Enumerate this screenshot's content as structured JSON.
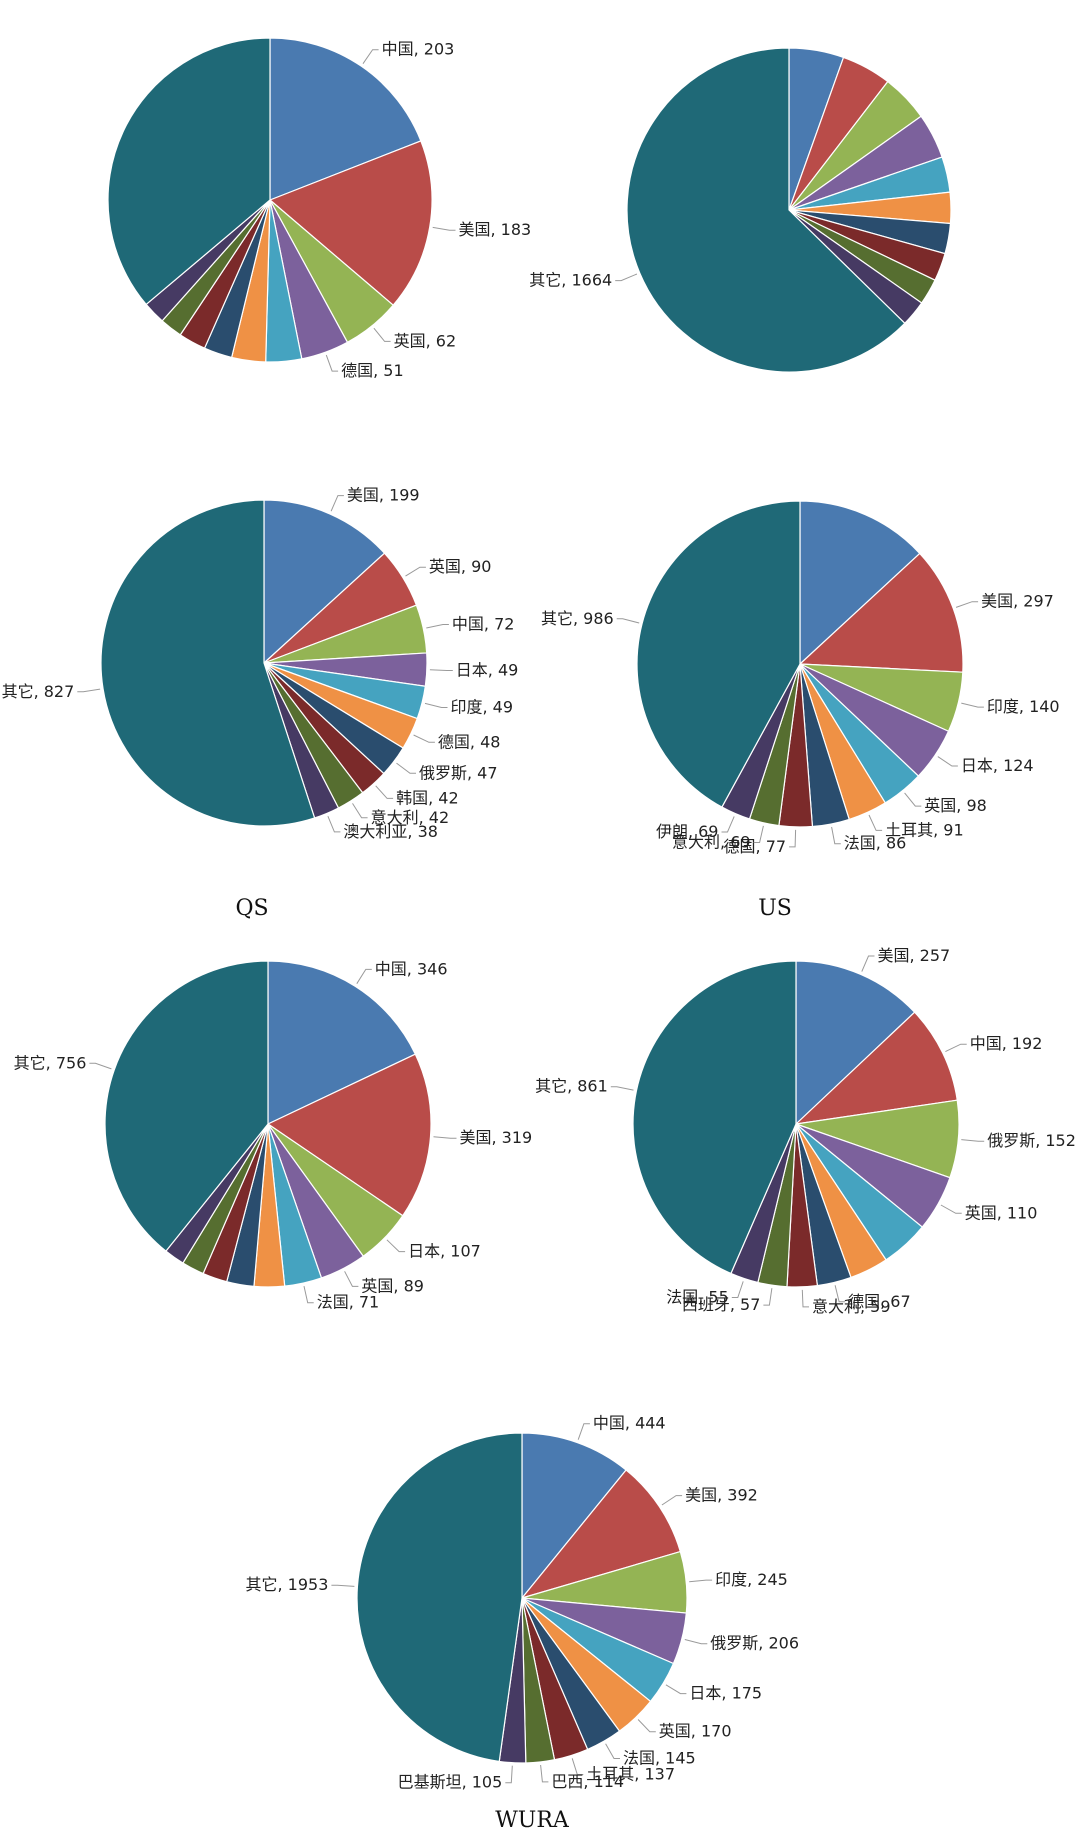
{
  "colors": [
    "#4a7ab0",
    "#b94c49",
    "#94b454",
    "#7c619c",
    "#45a3c0",
    "#ef9145",
    "#2a4d6e",
    "#7b2a2a",
    "#566e30",
    "#463a63",
    "#1f6977"
  ],
  "chart_data": [
    {
      "type": "pie",
      "title": "",
      "slices": [
        {
          "label": "中国",
          "value": 203
        },
        {
          "label": "美国",
          "value": 183
        },
        {
          "label": "英国",
          "value": 62
        },
        {
          "label": "德国",
          "value": 51
        },
        {
          "label": "",
          "value": 38
        },
        {
          "label": "",
          "value": 36
        },
        {
          "label": "",
          "value": 30
        },
        {
          "label": "",
          "value": 29
        },
        {
          "label": "",
          "value": 24
        },
        {
          "label": "",
          "value": 24
        },
        {
          "label": "",
          "value": 385
        }
      ]
    },
    {
      "type": "pie",
      "title": "",
      "slices": [
        {
          "label": "",
          "value": 145
        },
        {
          "label": "",
          "value": 132
        },
        {
          "label": "",
          "value": 126
        },
        {
          "label": "",
          "value": 120
        },
        {
          "label": "",
          "value": 94
        },
        {
          "label": "",
          "value": 82
        },
        {
          "label": "",
          "value": 80
        },
        {
          "label": "",
          "value": 74
        },
        {
          "label": "",
          "value": 69
        },
        {
          "label": "",
          "value": 69
        },
        {
          "label": "其它",
          "value": 1664
        }
      ]
    },
    {
      "type": "pie",
      "title": "QS",
      "slices": [
        {
          "label": "美国",
          "value": 199
        },
        {
          "label": "英国",
          "value": 90
        },
        {
          "label": "中国",
          "value": 72
        },
        {
          "label": "日本",
          "value": 49
        },
        {
          "label": "印度",
          "value": 49
        },
        {
          "label": "德国",
          "value": 48
        },
        {
          "label": "俄罗斯",
          "value": 47
        },
        {
          "label": "韩国",
          "value": 42
        },
        {
          "label": "意大利",
          "value": 42
        },
        {
          "label": "澳大利亚",
          "value": 38
        },
        {
          "label": "其它",
          "value": 827
        }
      ]
    },
    {
      "type": "pie",
      "title": "US",
      "slices": [
        {
          "label": "",
          "value": 308
        },
        {
          "label": "美国",
          "value": 297
        },
        {
          "label": "印度",
          "value": 140
        },
        {
          "label": "日本",
          "value": 124
        },
        {
          "label": "英国",
          "value": 98
        },
        {
          "label": "土耳其",
          "value": 91
        },
        {
          "label": "法国",
          "value": 86
        },
        {
          "label": "德国",
          "value": 77
        },
        {
          "label": "意大利",
          "value": 69
        },
        {
          "label": "伊朗",
          "value": 69
        },
        {
          "label": "其它",
          "value": 986
        }
      ]
    },
    {
      "type": "pie",
      "title": "",
      "slices": [
        {
          "label": "中国",
          "value": 346
        },
        {
          "label": "美国",
          "value": 319
        },
        {
          "label": "日本",
          "value": 107
        },
        {
          "label": "英国",
          "value": 89
        },
        {
          "label": "法国",
          "value": 71
        },
        {
          "label": "",
          "value": 58
        },
        {
          "label": "",
          "value": 52
        },
        {
          "label": "",
          "value": 47
        },
        {
          "label": "",
          "value": 43
        },
        {
          "label": "",
          "value": 39
        },
        {
          "label": "其它",
          "value": 756
        }
      ]
    },
    {
      "type": "pie",
      "title": "",
      "slices": [
        {
          "label": "美国",
          "value": 257
        },
        {
          "label": "中国",
          "value": 192
        },
        {
          "label": "俄罗斯",
          "value": 152
        },
        {
          "label": "英国",
          "value": 110
        },
        {
          "label": "",
          "value": 95
        },
        {
          "label": "",
          "value": 76
        },
        {
          "label": "德国",
          "value": 67
        },
        {
          "label": "意大利",
          "value": 59
        },
        {
          "label": "西班牙",
          "value": 57
        },
        {
          "label": "法国",
          "value": 55
        },
        {
          "label": "其它",
          "value": 861
        }
      ]
    },
    {
      "type": "pie",
      "title": "WURA",
      "slices": [
        {
          "label": "中国",
          "value": 444
        },
        {
          "label": "美国",
          "value": 392
        },
        {
          "label": "印度",
          "value": 245
        },
        {
          "label": "俄罗斯",
          "value": 206
        },
        {
          "label": "日本",
          "value": 175
        },
        {
          "label": "英国",
          "value": 170
        },
        {
          "label": "法国",
          "value": 145
        },
        {
          "label": "土耳其",
          "value": 137
        },
        {
          "label": "巴西",
          "value": 114
        },
        {
          "label": "巴基斯坦",
          "value": 105
        },
        {
          "label": "其它",
          "value": 1953
        }
      ]
    }
  ]
}
